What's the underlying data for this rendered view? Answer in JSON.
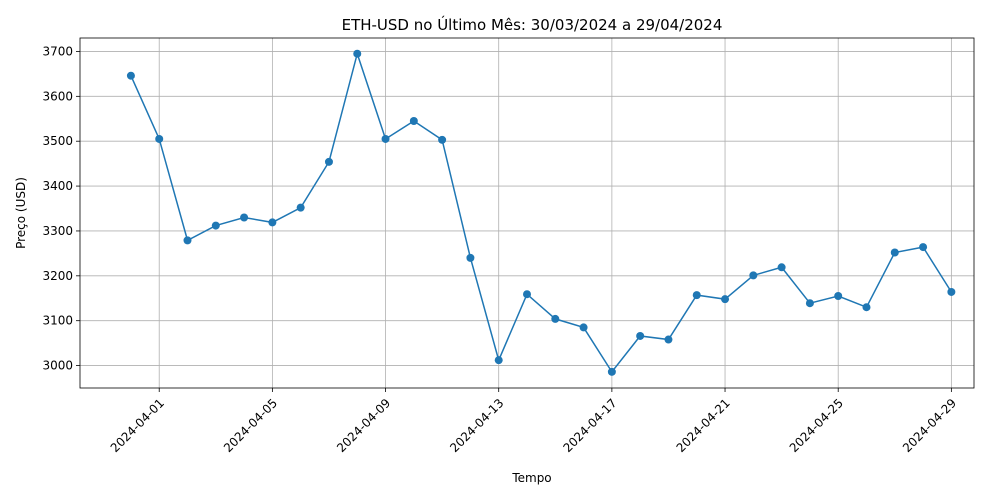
{
  "chart_data": {
    "type": "line",
    "title": "ETH-USD no Último Mês: 30/03/2024 a 29/04/2024",
    "xlabel": "Tempo",
    "ylabel": "Preço (USD)",
    "x_tick_labels": [
      "2024-04-01",
      "2024-04-05",
      "2024-04-09",
      "2024-04-13",
      "2024-04-17",
      "2024-04-21",
      "2024-04-25",
      "2024-04-29"
    ],
    "y_tick_labels": [
      "3000",
      "3100",
      "3200",
      "3300",
      "3400",
      "3500",
      "3600",
      "3700"
    ],
    "ylim": [
      2950,
      3730
    ],
    "xlim": [
      "2024-03-29",
      "2024-04-30"
    ],
    "grid": true,
    "color": "#1f77b4",
    "series": [
      {
        "x": [
          "2024-03-31",
          "2024-04-01",
          "2024-04-02",
          "2024-04-03",
          "2024-04-04",
          "2024-04-05",
          "2024-04-06",
          "2024-04-07",
          "2024-04-08",
          "2024-04-09",
          "2024-04-10",
          "2024-04-11",
          "2024-04-12",
          "2024-04-13",
          "2024-04-14",
          "2024-04-15",
          "2024-04-16",
          "2024-04-17",
          "2024-04-18",
          "2024-04-19",
          "2024-04-20",
          "2024-04-21",
          "2024-04-22",
          "2024-04-23",
          "2024-04-24",
          "2024-04-25",
          "2024-04-26",
          "2024-04-27",
          "2024-04-28",
          "2024-04-29"
        ],
        "values": [
          3646,
          3505,
          3279,
          3312,
          3330,
          3319,
          3352,
          3454,
          3695,
          3505,
          3545,
          3503,
          3240,
          3012,
          3159,
          3104,
          3085,
          2986,
          3066,
          3058,
          3157,
          3148,
          3201,
          3219,
          3139,
          3155,
          3130,
          3252,
          3264,
          3164
        ]
      }
    ]
  }
}
